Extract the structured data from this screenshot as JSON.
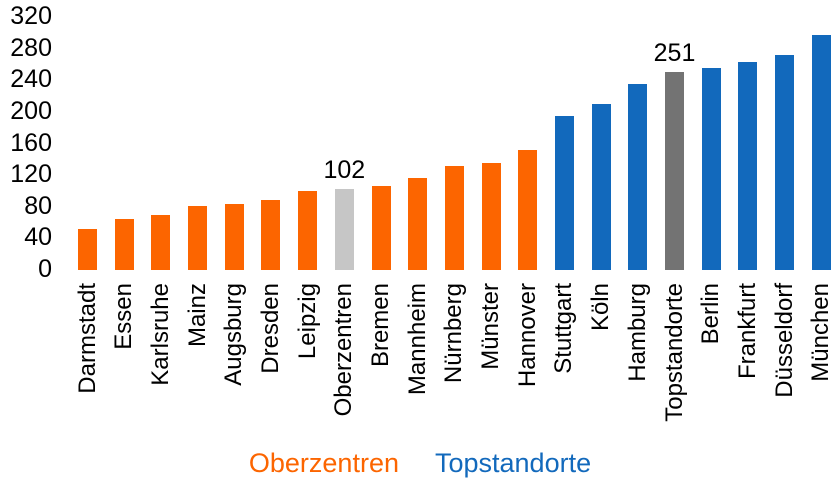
{
  "chart_data": {
    "type": "bar",
    "title": "",
    "xlabel": "",
    "ylabel": "",
    "categories": [
      "Darmstadt",
      "Essen",
      "Karlsruhe",
      "Mainz",
      "Augsburg",
      "Dresden",
      "Leipzig",
      "Oberzentren",
      "Bremen",
      "Mannheim",
      "Nürnberg",
      "Münster",
      "Hannover",
      "Stuttgart",
      "Köln",
      "Hamburg",
      "Topstandorte",
      "Berlin",
      "Frankfurt",
      "Düsseldorf",
      "München"
    ],
    "values": [
      52,
      65,
      70,
      81,
      84,
      88,
      100,
      102,
      106,
      117,
      132,
      136,
      152,
      195,
      210,
      236,
      251,
      256,
      263,
      272,
      297
    ],
    "bar_groups": [
      "oberzentrum",
      "oberzentrum",
      "oberzentrum",
      "oberzentrum",
      "oberzentrum",
      "oberzentrum",
      "oberzentrum",
      "avg_oberzentren",
      "oberzentrum",
      "oberzentrum",
      "oberzentrum",
      "oberzentrum",
      "oberzentrum",
      "topstandort",
      "topstandort",
      "topstandort",
      "avg_topstandorte",
      "topstandort",
      "topstandort",
      "topstandort",
      "topstandort"
    ],
    "labeled_indices": [
      7,
      16
    ],
    "data_labels": {
      "Oberzentren": "102",
      "Topstandorte": "251"
    },
    "y_ticks": [
      0,
      40,
      80,
      120,
      160,
      200,
      240,
      280,
      320
    ],
    "ylim": [
      0,
      320
    ],
    "grid": false,
    "colors": {
      "oberzentrum": "#FC6500",
      "topstandort": "#1269BC",
      "avg_oberzentren": "#C6C6C6",
      "avg_topstandorte": "#737373",
      "text": "#000000",
      "background": "#FFFFFF"
    },
    "legend": {
      "position": "bottom",
      "entries": [
        {
          "label": "Oberzentren",
          "color": "#FC6500"
        },
        {
          "label": "Topstandorte",
          "color": "#1269BC"
        }
      ]
    }
  }
}
